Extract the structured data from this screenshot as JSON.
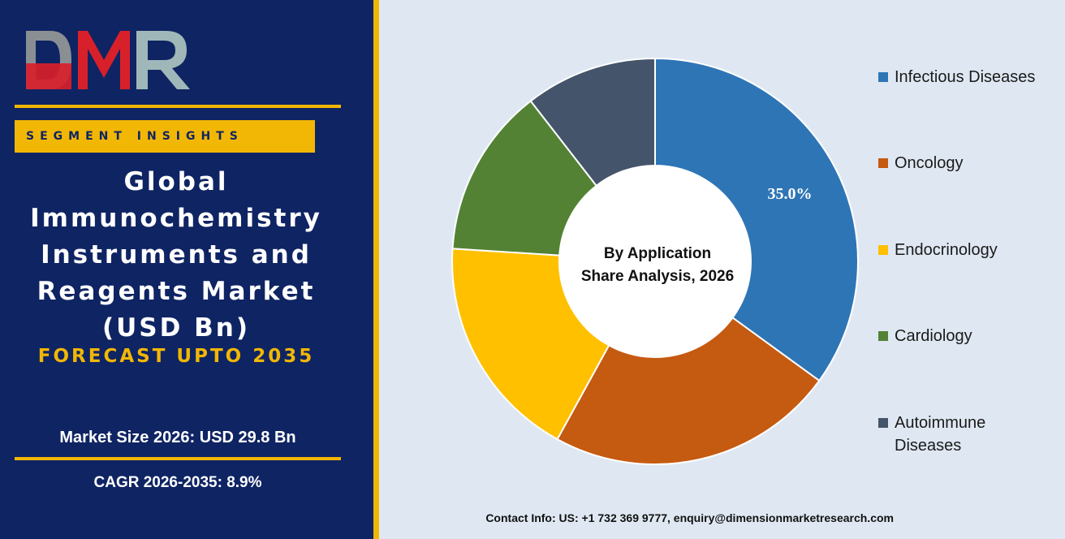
{
  "brand": {
    "logo_text": "DMR"
  },
  "panel": {
    "tag": "SEGMENT INSIGHTS",
    "title_lines": [
      "Global",
      "Immunochemistry",
      "Instruments and",
      "Reagents Market",
      "(USD Bn)"
    ],
    "forecast": "FORECAST UPTO 2035",
    "market_size": "Market Size 2026: USD 29.8 Bn",
    "cagr": "CAGR 2026-2035: 8.9%"
  },
  "colors": {
    "panel_bg": "#0f2463",
    "accent": "#f2b705",
    "chart_bg": "#dfe8f2"
  },
  "chart_data": {
    "type": "pie",
    "center_label": [
      "By Application",
      "Share Analysis, 2026"
    ],
    "categories": [
      "Infectious Diseases",
      "Oncology",
      "Endocrinology",
      "Cardiology",
      "Autoimmune Diseases"
    ],
    "values": [
      35.0,
      23.0,
      18.0,
      13.5,
      10.5
    ],
    "colors": [
      "#2e75b6",
      "#c55a11",
      "#ffc000",
      "#548235",
      "#44546a"
    ],
    "data_labels": [
      "35.0%",
      "",
      "",
      "",
      ""
    ],
    "legend_position": "right"
  },
  "footer": {
    "contact": "Contact Info: US: +1 732 369 9777, enquiry@dimensionmarketresearch.com"
  }
}
